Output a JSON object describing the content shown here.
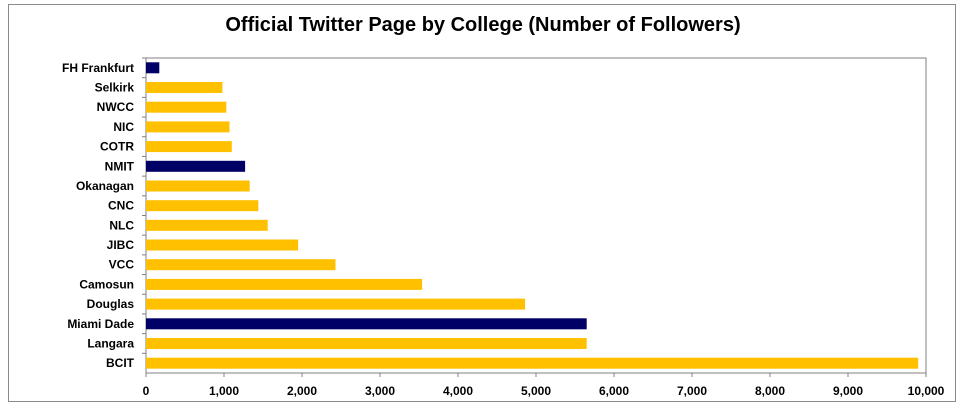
{
  "chart_data": {
    "type": "bar",
    "orientation": "horizontal",
    "title": "Official Twitter Page by College (Number of Followers)",
    "xlabel": "",
    "ylabel": "",
    "categories": [
      "FH Frankfurt",
      "Selkirk",
      "NWCC",
      "NIC",
      "COTR",
      "NMIT",
      "Okanagan",
      "CNC",
      "NLC",
      "JIBC",
      "VCC",
      "Camosun",
      "Douglas",
      "Miami Dade",
      "Langara",
      "BCIT"
    ],
    "values": [
      170,
      980,
      1030,
      1070,
      1100,
      1270,
      1330,
      1440,
      1560,
      1950,
      2430,
      3540,
      4860,
      5650,
      5650,
      9900
    ],
    "highlight": [
      "FH Frankfurt",
      "NMIT",
      "Miami Dade"
    ],
    "xlim": [
      0,
      10000
    ],
    "xticks": [
      0,
      1000,
      2000,
      3000,
      4000,
      5000,
      6000,
      7000,
      8000,
      9000,
      10000
    ],
    "xtick_labels": [
      "0",
      "1,000",
      "2,000",
      "3,000",
      "4,000",
      "5,000",
      "6,000",
      "7,000",
      "8,000",
      "9,000",
      "10,000"
    ],
    "grid": false,
    "legend": "none",
    "colors": {
      "default": "#FFC000",
      "highlight": "#000066"
    }
  }
}
